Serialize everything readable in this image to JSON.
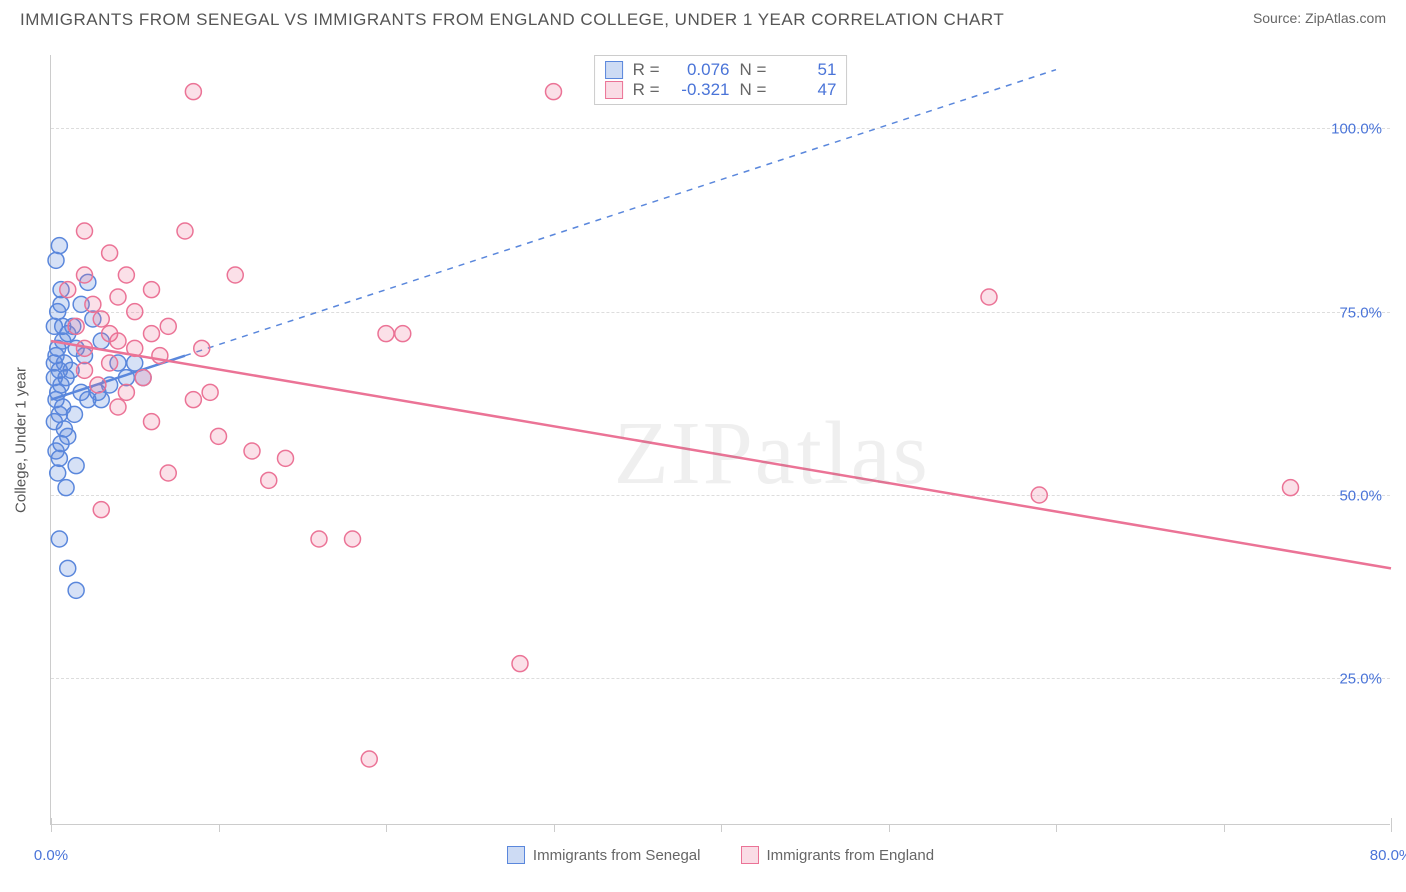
{
  "title": "IMMIGRANTS FROM SENEGAL VS IMMIGRANTS FROM ENGLAND COLLEGE, UNDER 1 YEAR CORRELATION CHART",
  "source": "Source: ZipAtlas.com",
  "watermark": "ZIPatlas",
  "y_axis_title": "College, Under 1 year",
  "chart": {
    "type": "scatter",
    "xlim": [
      0,
      80
    ],
    "ylim": [
      5,
      110
    ],
    "x_ticks_major": [
      0,
      80
    ],
    "x_ticks_minor": [
      10,
      20,
      30,
      40,
      50,
      60,
      70
    ],
    "x_tick_labels": {
      "0": "0.0%",
      "80": "80.0%"
    },
    "y_gridlines": [
      25,
      50,
      75,
      100
    ],
    "y_tick_labels": {
      "25": "25.0%",
      "50": "50.0%",
      "75": "75.0%",
      "100": "100.0%"
    },
    "marker_radius": 8,
    "marker_stroke_width": 1.5,
    "marker_fill_opacity": 0.25,
    "background_color": "#ffffff",
    "grid_color": "#dddddd",
    "axis_color": "#cccccc",
    "series": [
      {
        "name": "Immigrants from Senegal",
        "color": "#5a87dc",
        "fill": "rgba(90,135,220,0.25)",
        "R": "0.076",
        "N": "51",
        "trend_solid": {
          "x1": 0,
          "y1": 63,
          "x2": 8,
          "y2": 69
        },
        "trend_dash": {
          "x1": 8,
          "y1": 69,
          "x2": 60,
          "y2": 108
        },
        "points": [
          [
            0.5,
            84
          ],
          [
            0.3,
            82
          ],
          [
            2.2,
            79
          ],
          [
            0.6,
            78
          ],
          [
            1.8,
            76
          ],
          [
            0.4,
            75
          ],
          [
            2.5,
            74
          ],
          [
            0.2,
            73
          ],
          [
            1.0,
            72
          ],
          [
            0.7,
            71
          ],
          [
            3.0,
            71
          ],
          [
            0.4,
            70
          ],
          [
            1.5,
            70
          ],
          [
            0.3,
            69
          ],
          [
            2.0,
            69
          ],
          [
            0.8,
            68
          ],
          [
            4.0,
            68
          ],
          [
            0.5,
            67
          ],
          [
            1.2,
            67
          ],
          [
            0.2,
            66
          ],
          [
            0.9,
            66
          ],
          [
            5.5,
            66
          ],
          [
            3.5,
            65
          ],
          [
            0.6,
            65
          ],
          [
            1.8,
            64
          ],
          [
            0.4,
            64
          ],
          [
            0.3,
            63
          ],
          [
            2.2,
            63
          ],
          [
            0.7,
            62
          ],
          [
            0.5,
            61
          ],
          [
            1.4,
            61
          ],
          [
            4.5,
            66
          ],
          [
            0.2,
            60
          ],
          [
            0.8,
            59
          ],
          [
            1.0,
            58
          ],
          [
            0.6,
            57
          ],
          [
            3.0,
            63
          ],
          [
            0.3,
            56
          ],
          [
            0.5,
            55
          ],
          [
            1.5,
            54
          ],
          [
            0.4,
            53
          ],
          [
            0.9,
            51
          ],
          [
            0.2,
            68
          ],
          [
            2.8,
            64
          ],
          [
            5.0,
            68
          ],
          [
            0.5,
            44
          ],
          [
            1.0,
            40
          ],
          [
            1.5,
            37
          ],
          [
            0.7,
            73
          ],
          [
            1.3,
            73
          ],
          [
            0.6,
            76
          ]
        ]
      },
      {
        "name": "Immigrants from England",
        "color": "#eb7396",
        "fill": "rgba(235,115,150,0.22)",
        "R": "-0.321",
        "N": "47",
        "trend_solid": {
          "x1": 0,
          "y1": 71,
          "x2": 80,
          "y2": 40
        },
        "trend_dash": null,
        "points": [
          [
            8.5,
            105
          ],
          [
            30,
            105
          ],
          [
            2.0,
            86
          ],
          [
            8.0,
            86
          ],
          [
            3.5,
            83
          ],
          [
            4.5,
            80
          ],
          [
            11,
            80
          ],
          [
            6.0,
            78
          ],
          [
            2.5,
            76
          ],
          [
            5.0,
            75
          ],
          [
            3.0,
            74
          ],
          [
            20,
            72
          ],
          [
            21,
            72
          ],
          [
            7.0,
            73
          ],
          [
            4.0,
            71
          ],
          [
            9.0,
            70
          ],
          [
            2.0,
            70
          ],
          [
            6.5,
            69
          ],
          [
            3.5,
            68
          ],
          [
            1.5,
            73
          ],
          [
            5.5,
            66
          ],
          [
            2.8,
            65
          ],
          [
            8.5,
            63
          ],
          [
            4.0,
            62
          ],
          [
            1.0,
            78
          ],
          [
            10,
            58
          ],
          [
            12,
            56
          ],
          [
            14,
            55
          ],
          [
            6.0,
            60
          ],
          [
            3.0,
            48
          ],
          [
            16,
            44
          ],
          [
            18,
            44
          ],
          [
            7.0,
            53
          ],
          [
            28,
            27
          ],
          [
            19,
            14
          ],
          [
            56,
            77
          ],
          [
            59,
            50
          ],
          [
            74,
            51
          ],
          [
            2.0,
            80
          ],
          [
            4.0,
            77
          ],
          [
            6.0,
            72
          ],
          [
            9.5,
            64
          ],
          [
            13,
            52
          ],
          [
            5.0,
            70
          ],
          [
            3.5,
            72
          ],
          [
            2.0,
            67
          ],
          [
            4.5,
            64
          ]
        ]
      }
    ]
  },
  "stat_legend": {
    "r_label": "R =",
    "n_label": "N ="
  },
  "colors": {
    "tick_label": "#4a74d8",
    "text": "#555555"
  }
}
